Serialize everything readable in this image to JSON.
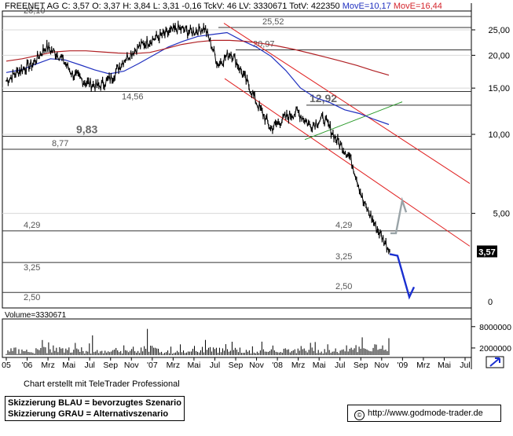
{
  "header": {
    "instrument": "FREENET AG",
    "quote": "C: 3,57 O: 3,37 H: 3,84 L: 3,31 -0,16 TckV: 46 LV: 3330671 TotV: 422350",
    "mov_e_a": "MovE=10,17",
    "mov_e_b": "MovE=16,44"
  },
  "volume_label": "Volume=3330671",
  "credit": "Chart erstellt mit TeleTrader Professional",
  "legend": {
    "blue": "Skizzierung BLAU = bevorzugtes Szenario",
    "grey": "Skizzierung GRAU = Alternativszenario"
  },
  "url": "http://www.godmode-trader.de",
  "colors": {
    "price": "#000000",
    "ma_fast": "#1f2fbf",
    "ma_slow": "#b02024",
    "channel": "#e02020",
    "triangle": "#2a9a2a",
    "scenario_blue": "#1a2fd0",
    "scenario_grey": "#9aa4a8",
    "grid": "#d8d8d8"
  },
  "chart_data": {
    "type": "line",
    "title": "FREENET AG",
    "y_scale": "log",
    "ylim": [
      2.2,
      30
    ],
    "y_ticks": [
      "25,00",
      "20,00",
      "15,00",
      "10,00",
      "5,00"
    ],
    "volume_ticks": [
      "8000000",
      "2000000"
    ],
    "x_ticks": [
      "05",
      "'06",
      "Mrz",
      "Mai",
      "Jul",
      "Sep",
      "Nov",
      "'07",
      "Mrz",
      "Mai",
      "Jul",
      "Sep",
      "Nov",
      "'08",
      "Mrz",
      "Mai",
      "Jul",
      "Sep",
      "Nov",
      "'09",
      "Mrz",
      "Mai",
      "Jul"
    ],
    "last_price": "3,57",
    "levels": [
      {
        "value": 28.1,
        "label": "28,10"
      },
      {
        "value": 25.52,
        "label": "25,52"
      },
      {
        "value": 20.97,
        "label": "20,97"
      },
      {
        "value": 14.56,
        "label": "14,56"
      },
      {
        "value": 12.92,
        "label": "12,92"
      },
      {
        "value": 9.83,
        "label": "9,83"
      },
      {
        "value": 8.77,
        "label": "8,77"
      },
      {
        "value": 4.29,
        "label": "4,29"
      },
      {
        "value": 4.29,
        "label": "4,29"
      },
      {
        "value": 3.25,
        "label": "3,25"
      },
      {
        "value": 3.25,
        "label": "3,25"
      },
      {
        "value": 2.5,
        "label": "2,50"
      },
      {
        "value": 2.5,
        "label": "2,50"
      }
    ],
    "series": [
      {
        "name": "FREENET AG",
        "values": [
          16.0,
          17.5,
          18.5,
          21.5,
          20.0,
          17.0,
          15.8,
          15.2,
          16.5,
          19.5,
          21.5,
          23.0,
          24.0,
          25.3,
          24.5,
          25.5,
          18.5,
          20.5,
          16.5,
          13.0,
          10.5,
          11.5,
          12.2,
          10.8,
          11.5,
          9.5,
          8.2,
          5.5,
          4.4,
          3.6
        ]
      },
      {
        "name": "MovE=10,17",
        "values": [
          17.2,
          17.6,
          18.5,
          19.4,
          19.2,
          18.4,
          17.6,
          17.0,
          17.4,
          18.6,
          20.0,
          21.5,
          22.6,
          23.6,
          24.0,
          24.4,
          22.8,
          21.5,
          19.8,
          17.5,
          15.0,
          13.8,
          13.2,
          12.4,
          12.0,
          11.4,
          10.9
        ]
      },
      {
        "name": "MovE=16,44",
        "values": [
          19.0,
          19.4,
          20.0,
          20.6,
          20.8,
          20.8,
          20.6,
          20.4,
          20.3,
          20.5,
          21.2,
          22.0,
          22.5,
          22.8,
          22.8,
          22.6,
          22.2,
          21.7,
          21.1,
          20.4,
          19.7,
          19.0,
          18.3,
          17.5,
          16.8
        ]
      }
    ],
    "volume": [
      0.8,
      1.2,
      0.9,
      1.6,
      1.0,
      2.0,
      1.1,
      0.9,
      1.4,
      1.0,
      1.8,
      1.2,
      0.9,
      1.3,
      1.6,
      1.0,
      1.2,
      1.7,
      1.1,
      1.5,
      2.4,
      1.2,
      1.8,
      2.0,
      1.3,
      2.5,
      1.4,
      3.0,
      1.6,
      2.0,
      2.6,
      1.2,
      1.8,
      1.4,
      2.2,
      1.5,
      1.9,
      1.3,
      2.1,
      1.7,
      2.8,
      1.6,
      2.0,
      1.4,
      3.2,
      2.4,
      1.8,
      2.2,
      1.6,
      2.3
    ]
  }
}
